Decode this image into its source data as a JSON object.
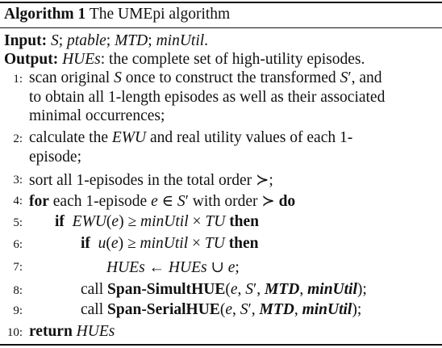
{
  "algorithm": {
    "label": "Algorithm 1",
    "title": "The UMEpi algorithm"
  },
  "input": {
    "label": "Input:",
    "items": [
      "S",
      "ptable",
      "MTD",
      "minUtil"
    ]
  },
  "output": {
    "label": "Output:",
    "name": "HUEs",
    "description": ": the complete set of high-utility episodes."
  },
  "lines": [
    {
      "num": "1:",
      "parts": [
        "scan original ",
        "S",
        " once to construct the transformed ",
        "S",
        "′",
        ", and",
        "to obtain all 1-length episodes as well as their associated",
        "minimal occurrences;"
      ]
    },
    {
      "num": "2:",
      "parts": [
        "calculate the ",
        "EWU",
        " and real utility values of each 1-",
        "episode;"
      ]
    },
    {
      "num": "3:",
      "parts": [
        "sort all 1-episodes in the total order ",
        "≻",
        ";"
      ]
    },
    {
      "num": "4:",
      "parts": [
        "for",
        " each 1-episode ",
        "e",
        " ∈ ",
        "S",
        "′",
        " with order ",
        "≻",
        " ",
        "do"
      ]
    },
    {
      "num": "5:",
      "parts": [
        "if",
        "EWU",
        "(",
        "e",
        ") ≥ ",
        "minUtil",
        " × ",
        "TU",
        " ",
        "then"
      ]
    },
    {
      "num": "6:",
      "parts": [
        "if",
        "u",
        "(",
        "e",
        ") ≥ ",
        "minUtil",
        " × ",
        "TU",
        " ",
        "then"
      ]
    },
    {
      "num": "7:",
      "parts": [
        "HUEs",
        " ← ",
        "HUEs",
        " ∪ ",
        "e",
        ";"
      ]
    },
    {
      "num": "8:",
      "parts": [
        "call ",
        "Span-SimultHUE",
        "(",
        "e",
        ", ",
        "S",
        "′",
        ", ",
        "MTD",
        ", ",
        "minUtil",
        ");"
      ]
    },
    {
      "num": "9:",
      "parts": [
        "call ",
        "Span-SerialHUE",
        "(",
        "e",
        ", ",
        "S",
        "′",
        ", ",
        "MTD",
        ", ",
        "minUtil",
        ");"
      ]
    },
    {
      "num": "10:",
      "parts": [
        "return",
        " ",
        "HUEs"
      ]
    }
  ]
}
